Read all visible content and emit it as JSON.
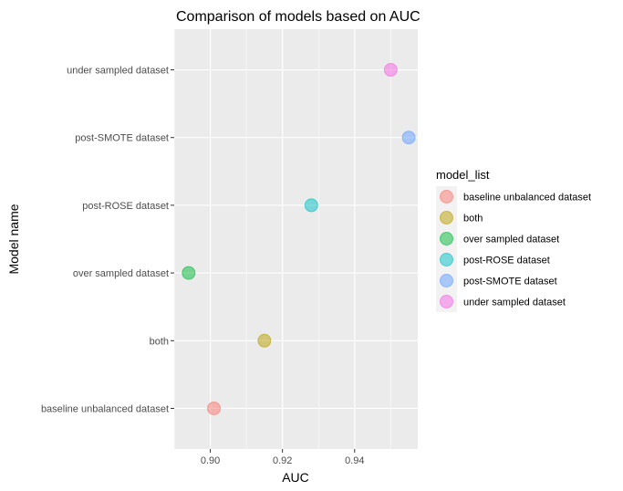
{
  "chart_data": {
    "type": "scatter",
    "title": "Comparison of models based on AUC",
    "xlabel": "AUC",
    "ylabel": "Model name",
    "xlim": [
      0.89,
      0.9575
    ],
    "x_ticks": [
      0.9,
      0.92,
      0.94
    ],
    "x_tick_labels": [
      "0.90",
      "0.92",
      "0.94"
    ],
    "categories": [
      "baseline unbalanced dataset",
      "both",
      "over sampled dataset",
      "post-ROSE dataset",
      "post-SMOTE dataset",
      "under sampled dataset"
    ],
    "points": [
      {
        "category": "baseline unbalanced dataset",
        "x": 0.901
      },
      {
        "category": "both",
        "x": 0.915
      },
      {
        "category": "over sampled dataset",
        "x": 0.894
      },
      {
        "category": "post-ROSE dataset",
        "x": 0.928
      },
      {
        "category": "post-SMOTE dataset",
        "x": 0.955
      },
      {
        "category": "under sampled dataset",
        "x": 0.95
      }
    ],
    "colors": {
      "baseline unbalanced dataset": "#F8766D",
      "both": "#B79F00",
      "over sampled dataset": "#00BA38",
      "post-ROSE dataset": "#00BFC4",
      "post-SMOTE dataset": "#619CFF",
      "under sampled dataset": "#F564E3"
    },
    "legend": {
      "title": "model_list",
      "placement": "right",
      "entries": [
        "baseline unbalanced dataset",
        "both",
        "over sampled dataset",
        "post-ROSE dataset",
        "post-SMOTE dataset",
        "under sampled dataset"
      ]
    },
    "grid": true,
    "panel_background": "#EBEBEB"
  }
}
